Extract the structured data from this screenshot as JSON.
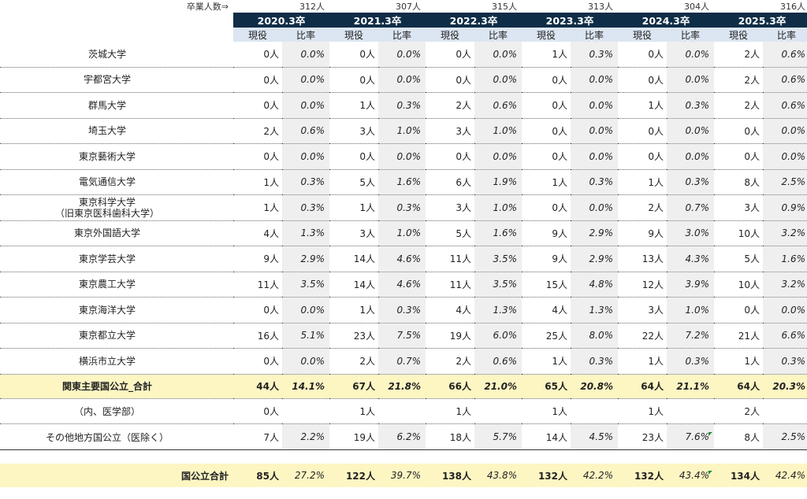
{
  "header": {
    "graduates_label": "卒業人数⇒",
    "graduates": [
      "312人",
      "307人",
      "315人",
      "313人",
      "304人",
      "316人"
    ],
    "years": [
      "2020.3卒",
      "2021.3卒",
      "2022.3卒",
      "2023.3卒",
      "2024.3卒",
      "2025.3卒"
    ],
    "sub_current": "現役",
    "sub_ratio": "比率"
  },
  "rows": [
    {
      "name": "茨城大学",
      "cells": [
        [
          "0人",
          "0.0%"
        ],
        [
          "0人",
          "0.0%"
        ],
        [
          "0人",
          "0.0%"
        ],
        [
          "1人",
          "0.3%"
        ],
        [
          "0人",
          "0.0%"
        ],
        [
          "2人",
          "0.6%"
        ]
      ]
    },
    {
      "name": "宇都宮大学",
      "cells": [
        [
          "0人",
          "0.0%"
        ],
        [
          "0人",
          "0.0%"
        ],
        [
          "0人",
          "0.0%"
        ],
        [
          "0人",
          "0.0%"
        ],
        [
          "0人",
          "0.0%"
        ],
        [
          "2人",
          "0.6%"
        ]
      ]
    },
    {
      "name": "群馬大学",
      "cells": [
        [
          "0人",
          "0.0%"
        ],
        [
          "1人",
          "0.3%"
        ],
        [
          "2人",
          "0.6%"
        ],
        [
          "0人",
          "0.0%"
        ],
        [
          "1人",
          "0.3%"
        ],
        [
          "2人",
          "0.6%"
        ]
      ]
    },
    {
      "name": "埼玉大学",
      "cells": [
        [
          "2人",
          "0.6%"
        ],
        [
          "3人",
          "1.0%"
        ],
        [
          "3人",
          "1.0%"
        ],
        [
          "0人",
          "0.0%"
        ],
        [
          "0人",
          "0.0%"
        ],
        [
          "0人",
          "0.0%"
        ]
      ]
    },
    {
      "name": "東京藝術大学",
      "cells": [
        [
          "0人",
          "0.0%"
        ],
        [
          "0人",
          "0.0%"
        ],
        [
          "0人",
          "0.0%"
        ],
        [
          "0人",
          "0.0%"
        ],
        [
          "0人",
          "0.0%"
        ],
        [
          "0人",
          "0.0%"
        ]
      ]
    },
    {
      "name": "電気通信大学",
      "cells": [
        [
          "1人",
          "0.3%"
        ],
        [
          "5人",
          "1.6%"
        ],
        [
          "6人",
          "1.9%"
        ],
        [
          "1人",
          "0.3%"
        ],
        [
          "1人",
          "0.3%"
        ],
        [
          "8人",
          "2.5%"
        ]
      ]
    },
    {
      "name": "東京科学大学",
      "name2": "（旧東京医科歯科大学）",
      "cells": [
        [
          "1人",
          "0.3%"
        ],
        [
          "1人",
          "0.3%"
        ],
        [
          "3人",
          "1.0%"
        ],
        [
          "0人",
          "0.0%"
        ],
        [
          "2人",
          "0.7%"
        ],
        [
          "3人",
          "0.9%"
        ]
      ]
    },
    {
      "name": "東京外国語大学",
      "cells": [
        [
          "4人",
          "1.3%"
        ],
        [
          "3人",
          "1.0%"
        ],
        [
          "5人",
          "1.6%"
        ],
        [
          "9人",
          "2.9%"
        ],
        [
          "9人",
          "3.0%"
        ],
        [
          "10人",
          "3.2%"
        ]
      ]
    },
    {
      "name": "東京学芸大学",
      "cells": [
        [
          "9人",
          "2.9%"
        ],
        [
          "14人",
          "4.6%"
        ],
        [
          "11人",
          "3.5%"
        ],
        [
          "9人",
          "2.9%"
        ],
        [
          "13人",
          "4.3%"
        ],
        [
          "5人",
          "1.6%"
        ]
      ]
    },
    {
      "name": "東京農工大学",
      "cells": [
        [
          "11人",
          "3.5%"
        ],
        [
          "14人",
          "4.6%"
        ],
        [
          "11人",
          "3.5%"
        ],
        [
          "15人",
          "4.8%"
        ],
        [
          "12人",
          "3.9%"
        ],
        [
          "10人",
          "3.2%"
        ]
      ]
    },
    {
      "name": "東京海洋大学",
      "cells": [
        [
          "0人",
          "0.0%"
        ],
        [
          "1人",
          "0.3%"
        ],
        [
          "4人",
          "1.3%"
        ],
        [
          "4人",
          "1.3%"
        ],
        [
          "3人",
          "1.0%"
        ],
        [
          "0人",
          "0.0%"
        ]
      ]
    },
    {
      "name": "東京都立大学",
      "cells": [
        [
          "16人",
          "5.1%"
        ],
        [
          "23人",
          "7.5%"
        ],
        [
          "19人",
          "6.0%"
        ],
        [
          "25人",
          "8.0%"
        ],
        [
          "22人",
          "7.2%"
        ],
        [
          "21人",
          "6.6%"
        ]
      ]
    },
    {
      "name": "横浜市立大学",
      "cells": [
        [
          "0人",
          "0.0%"
        ],
        [
          "2人",
          "0.7%"
        ],
        [
          "2人",
          "0.6%"
        ],
        [
          "1人",
          "0.3%"
        ],
        [
          "1人",
          "0.3%"
        ],
        [
          "1人",
          "0.3%"
        ]
      ]
    }
  ],
  "kanto_total": {
    "name": "関東主要国公立_合計",
    "cells": [
      [
        "44人",
        "14.1%"
      ],
      [
        "67人",
        "21.8%"
      ],
      [
        "66人",
        "21.0%"
      ],
      [
        "65人",
        "20.8%"
      ],
      [
        "64人",
        "21.1%"
      ],
      [
        "64人",
        "20.3%"
      ]
    ]
  },
  "medical": {
    "name": "（内、医学部）",
    "cells": [
      [
        "0人",
        ""
      ],
      [
        "1人",
        ""
      ],
      [
        "1人",
        ""
      ],
      [
        "1人",
        ""
      ],
      [
        "1人",
        ""
      ],
      [
        "2人",
        ""
      ]
    ]
  },
  "other": {
    "name": "その他地方国公立（医除く）",
    "cells": [
      [
        "7人",
        "2.2%"
      ],
      [
        "19人",
        "6.2%"
      ],
      [
        "18人",
        "5.7%"
      ],
      [
        "14人",
        "4.5%"
      ],
      [
        "23人",
        "7.6%"
      ],
      [
        "8人",
        "2.5%"
      ]
    ]
  },
  "grand_total": {
    "name": "国公立合計",
    "cells": [
      [
        "85人",
        "27.2%"
      ],
      [
        "122人",
        "39.7%"
      ],
      [
        "138人",
        "43.8%"
      ],
      [
        "132人",
        "42.2%"
      ],
      [
        "132人",
        "43.4%"
      ],
      [
        "134人",
        "42.4%"
      ]
    ]
  }
}
